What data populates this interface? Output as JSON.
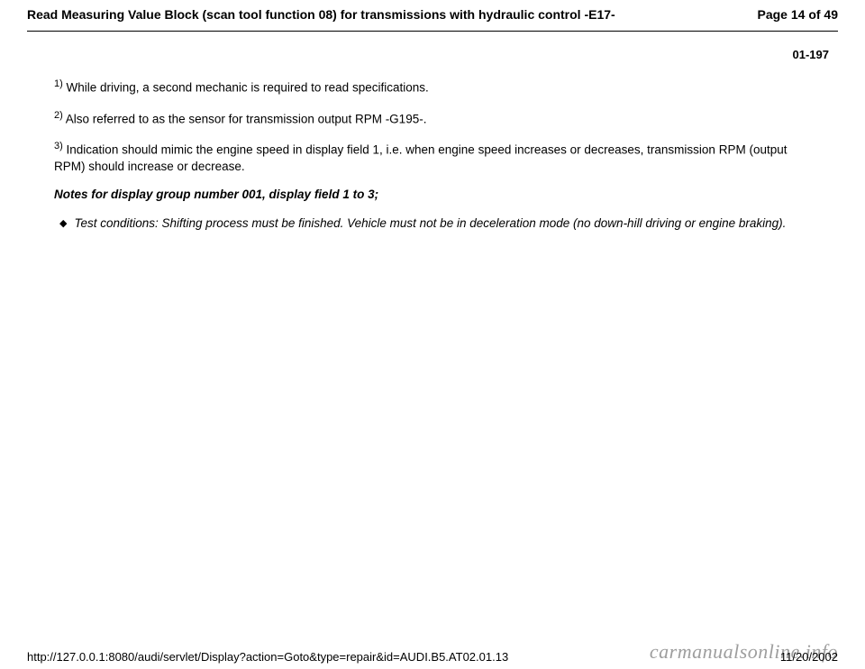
{
  "header": {
    "title": "Read Measuring Value Block (scan tool function 08) for transmissions with hydraulic control -E17-",
    "page_label": "Page 14 of 49"
  },
  "page_code": "01-197",
  "footnotes": [
    {
      "marker": "1)",
      "text": " While driving, a second mechanic is required to read specifications."
    },
    {
      "marker": "2)",
      "text": " Also referred to as the sensor for transmission output RPM -G195-."
    },
    {
      "marker": "3)",
      "text": " Indication should mimic the engine speed in display field 1, i.e. when engine speed increases or decreases, transmission RPM (output RPM) should increase or decrease."
    }
  ],
  "notes_heading": "Notes for display group number 001, display field 1 to 3;",
  "bullet": "Test conditions: Shifting process must be finished. Vehicle must not be in deceleration mode (no down-hill driving or engine braking).",
  "footer": {
    "url": "http://127.0.0.1:8080/audi/servlet/Display?action=Goto&type=repair&id=AUDI.B5.AT02.01.13",
    "date": "11/20/2002"
  },
  "watermark": "carmanualsonline.info"
}
